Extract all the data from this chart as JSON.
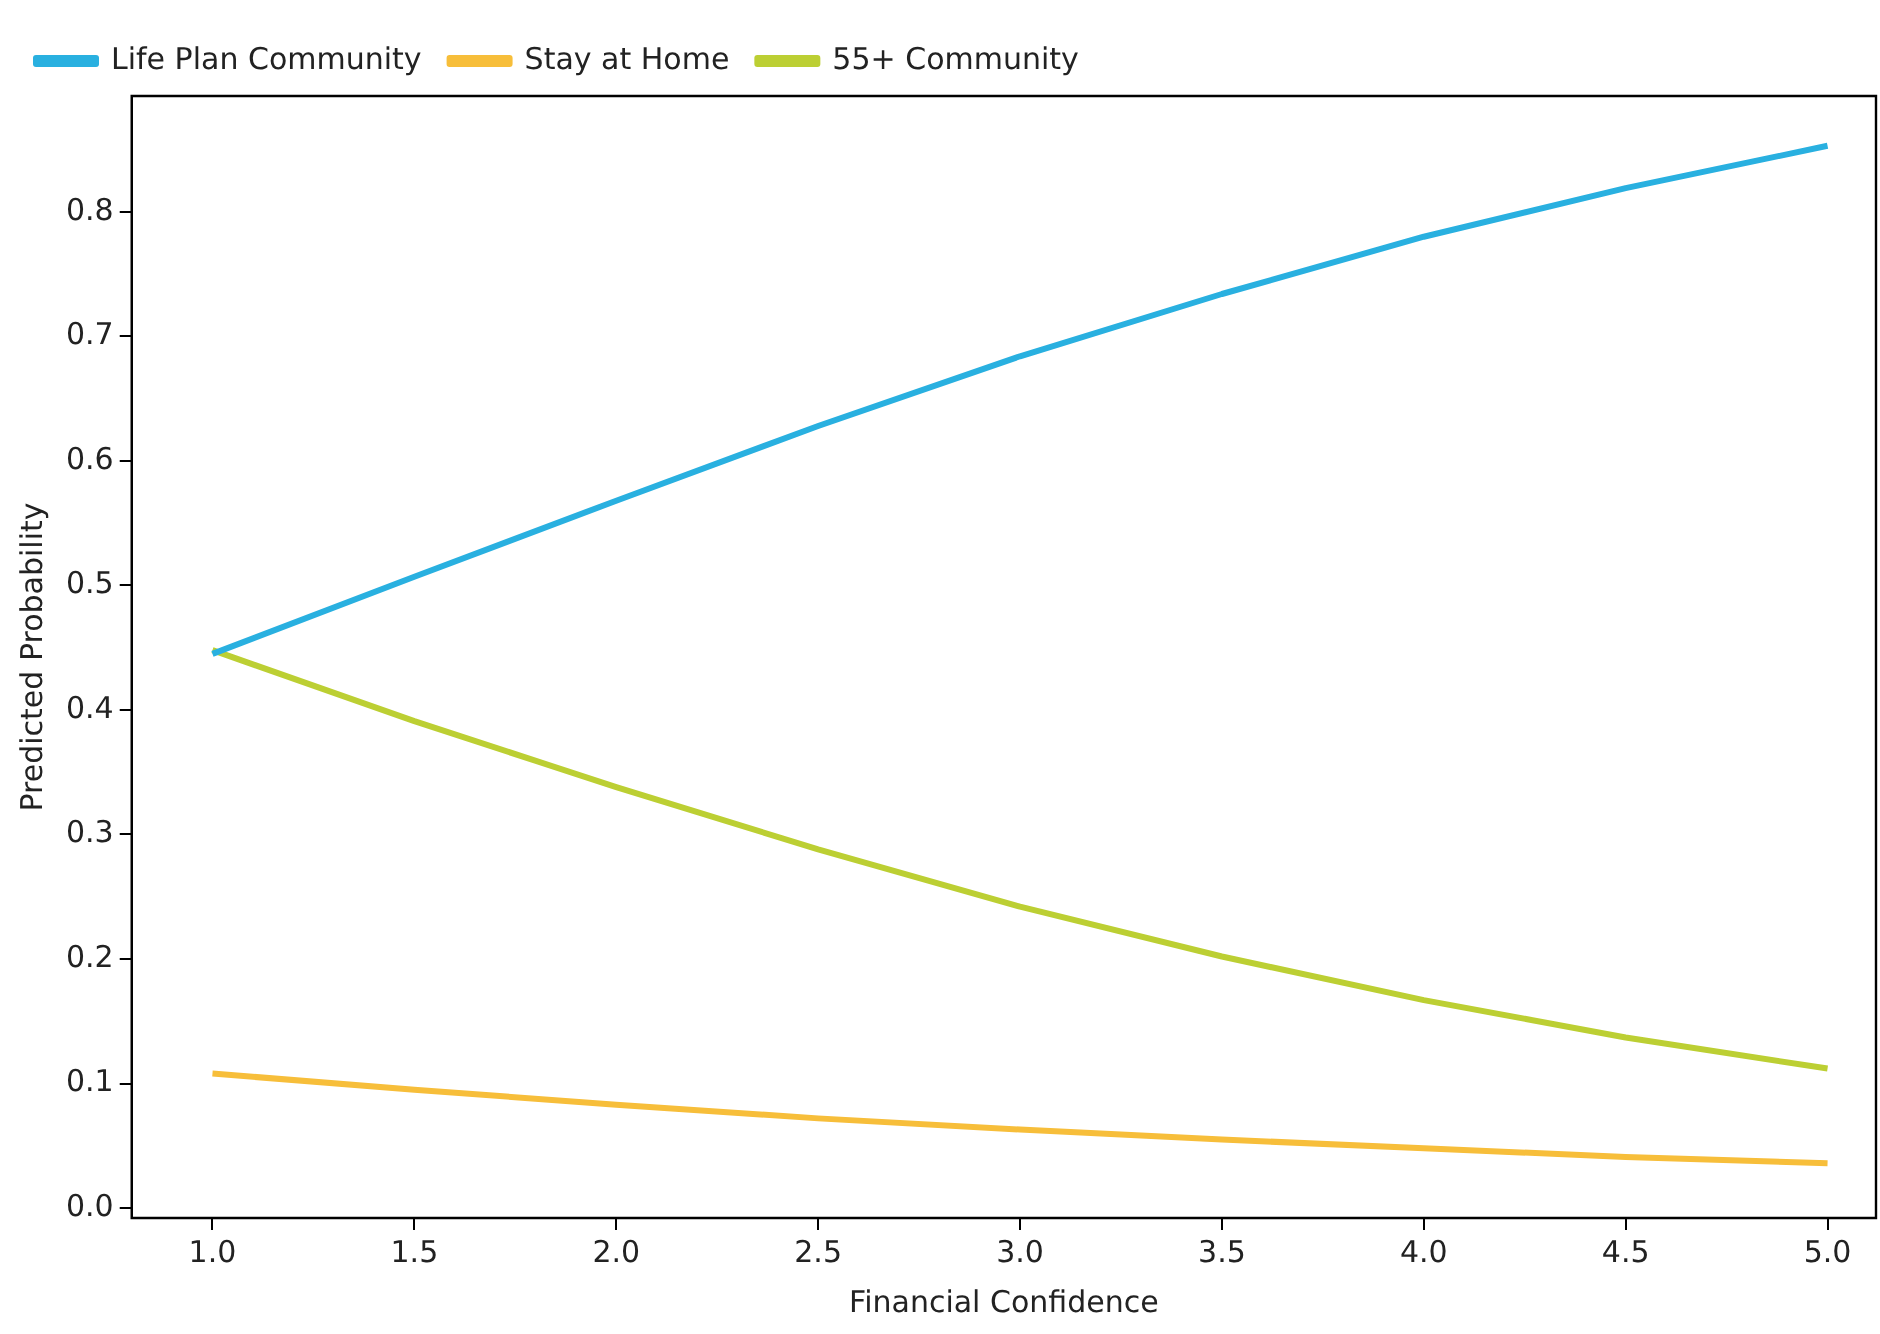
{
  "chart_data": {
    "type": "line",
    "xlabel": "Financial Confidence",
    "ylabel": "Predicted Probability",
    "x": [
      1,
      1.5,
      2,
      2.5,
      3,
      3.5,
      4,
      4.5,
      5
    ],
    "series": [
      {
        "name": "Life Plan Community",
        "color": "#29b0e0",
        "values": [
          0.445,
          0.507,
          0.568,
          0.628,
          0.684,
          0.734,
          0.78,
          0.819,
          0.853
        ]
      },
      {
        "name": "Stay at Home",
        "color": "#f7be3a",
        "values": [
          0.108,
          0.095,
          0.083,
          0.072,
          0.063,
          0.055,
          0.048,
          0.041,
          0.036
        ]
      },
      {
        "name": "55+ Community",
        "color": "#bccf33",
        "values": [
          0.448,
          0.391,
          0.338,
          0.288,
          0.242,
          0.202,
          0.167,
          0.137,
          0.112
        ]
      }
    ],
    "xlim": [
      0.8,
      5.12
    ],
    "ylim": [
      -0.008,
      0.893
    ],
    "xticks": [
      {
        "value": 1,
        "label": "1.0"
      },
      {
        "value": 1.5,
        "label": "1.5"
      },
      {
        "value": 2,
        "label": "2.0"
      },
      {
        "value": 2.5,
        "label": "2.5"
      },
      {
        "value": 3,
        "label": "3.0"
      },
      {
        "value": 3.5,
        "label": "3.5"
      },
      {
        "value": 4,
        "label": "4.0"
      },
      {
        "value": 4.5,
        "label": "4.5"
      },
      {
        "value": 5,
        "label": "5.0"
      }
    ],
    "yticks": [
      {
        "value": 0,
        "label": "0.0"
      },
      0.1,
      0.2,
      0.3,
      0.4,
      0.5,
      0.6,
      0.7,
      0.8
    ],
    "grid": false,
    "legend": "top left",
    "marker": "none",
    "line_style": "solid"
  }
}
